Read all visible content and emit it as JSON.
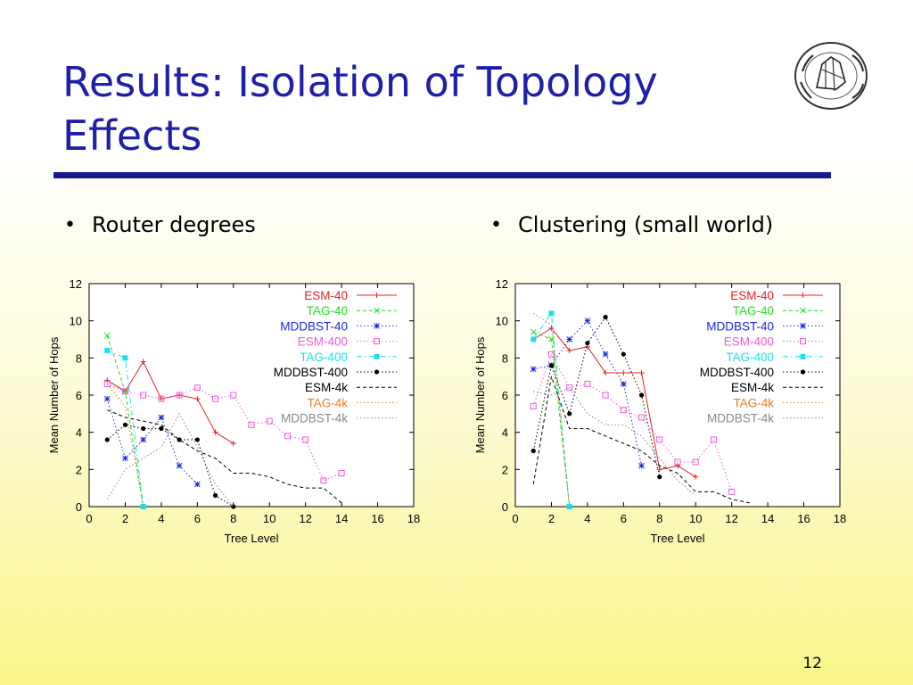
{
  "slide": {
    "title": "Results: Isolation of Topology Effects",
    "page_number": "12",
    "bullets": [
      "Router degrees",
      "Clustering (small world)"
    ]
  },
  "chart_data": [
    {
      "type": "line",
      "xlabel": "Tree Level",
      "ylabel": "Mean Number of Hops",
      "xlim": [
        0,
        18
      ],
      "ylim": [
        0,
        12
      ],
      "xticks": [
        0,
        2,
        4,
        6,
        8,
        10,
        12,
        14,
        16,
        18
      ],
      "yticks": [
        0,
        2,
        4,
        6,
        8,
        10,
        12
      ],
      "grid": false,
      "legend_position": "top-right",
      "series": [
        {
          "name": "ESM-40",
          "color": "#e8201c",
          "marker": "plus",
          "dash": "solid",
          "x": [
            1,
            2,
            3,
            4,
            5,
            6,
            7,
            8
          ],
          "y": [
            6.8,
            6.2,
            7.8,
            5.8,
            6.0,
            5.8,
            4.0,
            3.4
          ]
        },
        {
          "name": "TAG-40",
          "color": "#1ee01e",
          "marker": "cross",
          "dash": "dashed",
          "x": [
            1,
            2,
            3
          ],
          "y": [
            9.2,
            6.2,
            0.0
          ]
        },
        {
          "name": "MDDBST-40",
          "color": "#1a2be0",
          "marker": "star",
          "dash": "dotted",
          "x": [
            1,
            2,
            3,
            4,
            5,
            6
          ],
          "y": [
            5.8,
            2.6,
            3.6,
            4.8,
            2.2,
            1.2
          ]
        },
        {
          "name": "ESM-400",
          "color": "#f05ad8",
          "marker": "square",
          "dash": "dotted",
          "x": [
            1,
            2,
            3,
            4,
            5,
            6,
            7,
            8,
            9,
            10,
            11,
            12,
            13,
            14
          ],
          "y": [
            6.6,
            6.2,
            6.0,
            5.8,
            6.0,
            6.4,
            5.8,
            6.0,
            4.4,
            4.6,
            3.8,
            3.6,
            1.4,
            1.8
          ]
        },
        {
          "name": "TAG-400",
          "color": "#18e0ec",
          "marker": "filledsquare",
          "dash": "dashdot",
          "x": [
            1,
            2,
            3
          ],
          "y": [
            8.4,
            8.0,
            0.0
          ]
        },
        {
          "name": "MDDBST-400",
          "color": "#000000",
          "marker": "circle",
          "dash": "dotted",
          "x": [
            1,
            2,
            3,
            4,
            5,
            6,
            7,
            8
          ],
          "y": [
            3.6,
            4.4,
            4.2,
            4.2,
            3.6,
            3.6,
            0.6,
            0.0
          ]
        },
        {
          "name": "ESM-4k",
          "color": "#000000",
          "marker": "none",
          "dash": "dashed",
          "x": [
            1,
            2,
            3,
            4,
            5,
            6,
            7,
            8,
            9,
            10,
            11,
            12,
            13,
            14
          ],
          "y": [
            5.2,
            4.8,
            4.6,
            4.4,
            3.6,
            3.0,
            2.6,
            1.8,
            1.8,
            1.6,
            1.2,
            1.0,
            1.0,
            0.2
          ]
        },
        {
          "name": "TAG-4k",
          "color": "#f07a20",
          "marker": "none",
          "dash": "dotted",
          "x": [
            1,
            2,
            3
          ],
          "y": [
            6.6,
            5.4,
            0.0
          ]
        },
        {
          "name": "MDDBST-4k",
          "color": "#888888",
          "marker": "none",
          "dash": "dotted",
          "x": [
            1,
            2,
            3,
            4,
            5,
            6,
            7,
            8
          ],
          "y": [
            0.4,
            2.0,
            2.6,
            3.2,
            5.0,
            3.2,
            1.2,
            0.0
          ]
        }
      ]
    },
    {
      "type": "line",
      "xlabel": "Tree Level",
      "ylabel": "Mean Number of Hops",
      "xlim": [
        0,
        18
      ],
      "ylim": [
        0,
        12
      ],
      "xticks": [
        0,
        2,
        4,
        6,
        8,
        10,
        12,
        14,
        16,
        18
      ],
      "yticks": [
        0,
        2,
        4,
        6,
        8,
        10,
        12
      ],
      "grid": false,
      "legend_position": "top-right",
      "series": [
        {
          "name": "ESM-40",
          "color": "#e8201c",
          "marker": "plus",
          "dash": "solid",
          "x": [
            1,
            2,
            3,
            4,
            5,
            6,
            7,
            8,
            9,
            10
          ],
          "y": [
            9.0,
            9.6,
            8.4,
            8.6,
            7.2,
            7.2,
            7.2,
            2.0,
            2.2,
            1.6
          ]
        },
        {
          "name": "TAG-40",
          "color": "#1ee01e",
          "marker": "cross",
          "dash": "dashed",
          "x": [
            1,
            2,
            3
          ],
          "y": [
            9.4,
            9.0,
            0.0
          ]
        },
        {
          "name": "MDDBST-40",
          "color": "#1a2be0",
          "marker": "star",
          "dash": "dotted",
          "x": [
            1,
            2,
            3,
            4,
            5,
            6,
            7
          ],
          "y": [
            7.4,
            7.6,
            9.0,
            10.0,
            8.2,
            6.6,
            2.2
          ]
        },
        {
          "name": "ESM-400",
          "color": "#f05ad8",
          "marker": "square",
          "dash": "dotted",
          "x": [
            1,
            2,
            3,
            4,
            5,
            6,
            7,
            8,
            9,
            10,
            11,
            12
          ],
          "y": [
            5.4,
            8.2,
            6.4,
            6.6,
            6.0,
            5.2,
            4.8,
            3.6,
            2.4,
            2.4,
            3.6,
            0.8
          ]
        },
        {
          "name": "TAG-400",
          "color": "#18e0ec",
          "marker": "filledsquare",
          "dash": "dashdot",
          "x": [
            1,
            2,
            3
          ],
          "y": [
            9.0,
            10.4,
            0.0
          ]
        },
        {
          "name": "MDDBST-400",
          "color": "#000000",
          "marker": "circle",
          "dash": "dotted",
          "x": [
            1,
            2,
            3,
            4,
            5,
            6,
            7,
            8
          ],
          "y": [
            3.0,
            7.6,
            5.0,
            8.8,
            10.2,
            8.2,
            6.0,
            1.6
          ]
        },
        {
          "name": "ESM-4k",
          "color": "#000000",
          "marker": "none",
          "dash": "dashed",
          "x": [
            1,
            2,
            3,
            4,
            5,
            6,
            7,
            8,
            9,
            10,
            11,
            12,
            13
          ],
          "y": [
            1.2,
            7.0,
            4.2,
            4.2,
            3.8,
            3.4,
            3.0,
            2.2,
            1.8,
            0.8,
            0.8,
            0.4,
            0.2
          ]
        },
        {
          "name": "TAG-4k",
          "color": "#f07a20",
          "marker": "none",
          "dash": "dotted",
          "x": [
            1,
            2,
            3
          ],
          "y": [
            10.4,
            9.8,
            0.0
          ]
        },
        {
          "name": "MDDBST-4k",
          "color": "#888888",
          "marker": "none",
          "dash": "dotted",
          "x": [
            1,
            2,
            3,
            4,
            5,
            6,
            7,
            8,
            9,
            10
          ],
          "y": [
            6.2,
            6.0,
            6.4,
            5.0,
            4.4,
            4.4,
            3.8,
            2.6,
            1.4,
            0.6
          ]
        }
      ]
    }
  ]
}
